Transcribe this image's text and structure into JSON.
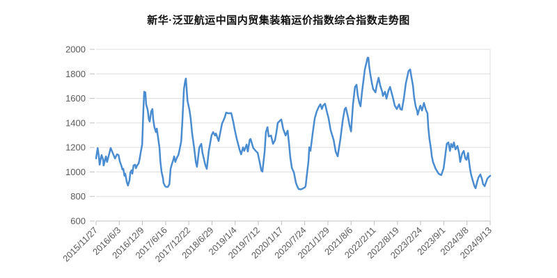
{
  "chart": {
    "title": "新华·泛亚航运中国内贸集装箱运价指数综合指数走势图"
  },
  "chart_data": {
    "type": "line",
    "title": "新华·泛亚航运中国内贸集装箱运价指数综合指数走势图",
    "series_name": "综合指数",
    "legend": "none",
    "grid": "horizontal-only",
    "colors": {
      "line": "#4a8cd2",
      "grid": "#dddddd",
      "axis": "#bfbfbf",
      "label": "#595959",
      "title": "#111111"
    },
    "y_axis": {
      "min": 600,
      "max": 2000,
      "step": 200,
      "ticks": [
        2000,
        1800,
        1600,
        1400,
        1200,
        1000,
        800,
        600
      ]
    },
    "x_axis": {
      "tick_labels": [
        "2015/11/27",
        "2016/6/3",
        "2016/12/9",
        "2017/6/16",
        "2017/12/22",
        "2018/6/29",
        "2019/1/4",
        "2019/7/12",
        "2020/1/17",
        "2020/7/24",
        "2021/1/29",
        "2021/8/6",
        "2022/2/11",
        "2022/8/19",
        "2023/2/24",
        "2023/9/1",
        "2024/3/8",
        "2024/9/13"
      ]
    },
    "points": [
      [
        0.0,
        1110
      ],
      [
        0.004,
        1195
      ],
      [
        0.007,
        1127
      ],
      [
        0.009,
        1059
      ],
      [
        0.014,
        1138
      ],
      [
        0.018,
        1099
      ],
      [
        0.019,
        1053
      ],
      [
        0.025,
        1127
      ],
      [
        0.028,
        1082
      ],
      [
        0.034,
        1156
      ],
      [
        0.037,
        1195
      ],
      [
        0.042,
        1156
      ],
      [
        0.048,
        1110
      ],
      [
        0.053,
        1144
      ],
      [
        0.057,
        1138
      ],
      [
        0.06,
        1088
      ],
      [
        0.064,
        1053
      ],
      [
        0.067,
        1020
      ],
      [
        0.069,
        1025
      ],
      [
        0.072,
        969
      ],
      [
        0.074,
        986
      ],
      [
        0.078,
        918
      ],
      [
        0.081,
        889
      ],
      [
        0.085,
        935
      ],
      [
        0.087,
        997
      ],
      [
        0.09,
        1014
      ],
      [
        0.092,
        986
      ],
      [
        0.095,
        1053
      ],
      [
        0.099,
        1059
      ],
      [
        0.101,
        1031
      ],
      [
        0.104,
        1053
      ],
      [
        0.108,
        1070
      ],
      [
        0.11,
        1099
      ],
      [
        0.113,
        1156
      ],
      [
        0.117,
        1224
      ],
      [
        0.12,
        1500
      ],
      [
        0.122,
        1654
      ],
      [
        0.124,
        1620
      ],
      [
        0.125,
        1649
      ],
      [
        0.127,
        1552
      ],
      [
        0.131,
        1507
      ],
      [
        0.134,
        1428
      ],
      [
        0.136,
        1411
      ],
      [
        0.14,
        1495
      ],
      [
        0.143,
        1513
      ],
      [
        0.145,
        1428
      ],
      [
        0.148,
        1365
      ],
      [
        0.152,
        1325
      ],
      [
        0.154,
        1354
      ],
      [
        0.157,
        1286
      ],
      [
        0.161,
        1195
      ],
      [
        0.163,
        1088
      ],
      [
        0.166,
        1003
      ],
      [
        0.17,
        946
      ],
      [
        0.171,
        912
      ],
      [
        0.175,
        884
      ],
      [
        0.178,
        878
      ],
      [
        0.182,
        878
      ],
      [
        0.186,
        900
      ],
      [
        0.189,
        1025
      ],
      [
        0.193,
        1070
      ],
      [
        0.196,
        1099
      ],
      [
        0.198,
        1127
      ],
      [
        0.201,
        1082
      ],
      [
        0.205,
        1116
      ],
      [
        0.209,
        1140
      ],
      [
        0.212,
        1184
      ],
      [
        0.216,
        1250
      ],
      [
        0.219,
        1420
      ],
      [
        0.223,
        1677
      ],
      [
        0.226,
        1740
      ],
      [
        0.228,
        1762
      ],
      [
        0.232,
        1580
      ],
      [
        0.237,
        1507
      ],
      [
        0.24,
        1439
      ],
      [
        0.244,
        1308
      ],
      [
        0.249,
        1195
      ],
      [
        0.253,
        1082
      ],
      [
        0.256,
        1042
      ],
      [
        0.262,
        1201
      ],
      [
        0.267,
        1229
      ],
      [
        0.27,
        1156
      ],
      [
        0.277,
        1059
      ],
      [
        0.281,
        1025
      ],
      [
        0.286,
        1172
      ],
      [
        0.293,
        1297
      ],
      [
        0.297,
        1325
      ],
      [
        0.302,
        1297
      ],
      [
        0.304,
        1314
      ],
      [
        0.311,
        1252
      ],
      [
        0.316,
        1337
      ],
      [
        0.32,
        1399
      ],
      [
        0.322,
        1411
      ],
      [
        0.327,
        1450
      ],
      [
        0.33,
        1484
      ],
      [
        0.336,
        1478
      ],
      [
        0.343,
        1480
      ],
      [
        0.348,
        1411
      ],
      [
        0.352,
        1343
      ],
      [
        0.357,
        1269
      ],
      [
        0.364,
        1184
      ],
      [
        0.368,
        1144
      ],
      [
        0.373,
        1201
      ],
      [
        0.376,
        1172
      ],
      [
        0.382,
        1223
      ],
      [
        0.385,
        1167
      ],
      [
        0.39,
        1263
      ],
      [
        0.392,
        1269
      ],
      [
        0.399,
        1195
      ],
      [
        0.405,
        1172
      ],
      [
        0.41,
        1156
      ],
      [
        0.415,
        1082
      ],
      [
        0.419,
        1014
      ],
      [
        0.422,
        1003
      ],
      [
        0.428,
        1172
      ],
      [
        0.431,
        1325
      ],
      [
        0.435,
        1365
      ],
      [
        0.438,
        1290
      ],
      [
        0.444,
        1297
      ],
      [
        0.449,
        1229
      ],
      [
        0.454,
        1260
      ],
      [
        0.458,
        1330
      ],
      [
        0.461,
        1399
      ],
      [
        0.467,
        1420
      ],
      [
        0.47,
        1428
      ],
      [
        0.475,
        1350
      ],
      [
        0.481,
        1297
      ],
      [
        0.486,
        1337
      ],
      [
        0.489,
        1250
      ],
      [
        0.493,
        1116
      ],
      [
        0.497,
        1031
      ],
      [
        0.502,
        997
      ],
      [
        0.507,
        912
      ],
      [
        0.511,
        880
      ],
      [
        0.514,
        861
      ],
      [
        0.52,
        858
      ],
      [
        0.525,
        866
      ],
      [
        0.53,
        875
      ],
      [
        0.532,
        889
      ],
      [
        0.535,
        980
      ],
      [
        0.539,
        1090
      ],
      [
        0.541,
        1201
      ],
      [
        0.544,
        1172
      ],
      [
        0.55,
        1325
      ],
      [
        0.555,
        1439
      ],
      [
        0.56,
        1495
      ],
      [
        0.565,
        1530
      ],
      [
        0.569,
        1552
      ],
      [
        0.573,
        1513
      ],
      [
        0.576,
        1541
      ],
      [
        0.581,
        1557
      ],
      [
        0.585,
        1500
      ],
      [
        0.59,
        1439
      ],
      [
        0.595,
        1343
      ],
      [
        0.603,
        1258
      ],
      [
        0.608,
        1167
      ],
      [
        0.613,
        1127
      ],
      [
        0.62,
        1269
      ],
      [
        0.626,
        1422
      ],
      [
        0.631,
        1513
      ],
      [
        0.634,
        1524
      ],
      [
        0.64,
        1439
      ],
      [
        0.643,
        1382
      ],
      [
        0.647,
        1330
      ],
      [
        0.652,
        1552
      ],
      [
        0.657,
        1694
      ],
      [
        0.661,
        1711
      ],
      [
        0.664,
        1626
      ],
      [
        0.668,
        1563
      ],
      [
        0.671,
        1535
      ],
      [
        0.675,
        1654
      ],
      [
        0.682,
        1836
      ],
      [
        0.689,
        1932
      ],
      [
        0.691,
        1932
      ],
      [
        0.693,
        1864
      ],
      [
        0.696,
        1796
      ],
      [
        0.7,
        1722
      ],
      [
        0.703,
        1677
      ],
      [
        0.709,
        1649
      ],
      [
        0.712,
        1705
      ],
      [
        0.717,
        1768
      ],
      [
        0.721,
        1705
      ],
      [
        0.726,
        1654
      ],
      [
        0.728,
        1620
      ],
      [
        0.733,
        1654
      ],
      [
        0.737,
        1598
      ],
      [
        0.742,
        1665
      ],
      [
        0.746,
        1694
      ],
      [
        0.753,
        1609
      ],
      [
        0.758,
        1541
      ],
      [
        0.763,
        1513
      ],
      [
        0.769,
        1552
      ],
      [
        0.772,
        1513
      ],
      [
        0.776,
        1507
      ],
      [
        0.781,
        1598
      ],
      [
        0.786,
        1722
      ],
      [
        0.793,
        1824
      ],
      [
        0.797,
        1836
      ],
      [
        0.8,
        1779
      ],
      [
        0.804,
        1705
      ],
      [
        0.807,
        1609
      ],
      [
        0.811,
        1535
      ],
      [
        0.815,
        1495
      ],
      [
        0.816,
        1467
      ],
      [
        0.822,
        1535
      ],
      [
        0.823,
        1541
      ],
      [
        0.827,
        1501
      ],
      [
        0.832,
        1563
      ],
      [
        0.837,
        1507
      ],
      [
        0.841,
        1478
      ],
      [
        0.843,
        1365
      ],
      [
        0.846,
        1269
      ],
      [
        0.85,
        1184
      ],
      [
        0.852,
        1127
      ],
      [
        0.855,
        1082
      ],
      [
        0.861,
        1031
      ],
      [
        0.864,
        1014
      ],
      [
        0.869,
        986
      ],
      [
        0.876,
        974
      ],
      [
        0.882,
        1031
      ],
      [
        0.887,
        1156
      ],
      [
        0.89,
        1229
      ],
      [
        0.894,
        1241
      ],
      [
        0.898,
        1172
      ],
      [
        0.901,
        1229
      ],
      [
        0.905,
        1201
      ],
      [
        0.908,
        1241
      ],
      [
        0.912,
        1184
      ],
      [
        0.917,
        1212
      ],
      [
        0.921,
        1156
      ],
      [
        0.924,
        1082
      ],
      [
        0.929,
        1150
      ],
      [
        0.933,
        1172
      ],
      [
        0.937,
        1110
      ],
      [
        0.94,
        1099
      ],
      [
        0.944,
        1155
      ],
      [
        0.945,
        1120
      ],
      [
        0.949,
        1025
      ],
      [
        0.952,
        974
      ],
      [
        0.956,
        929
      ],
      [
        0.96,
        884
      ],
      [
        0.963,
        867
      ],
      [
        0.967,
        918
      ],
      [
        0.97,
        952
      ],
      [
        0.974,
        974
      ],
      [
        0.975,
        980
      ],
      [
        0.979,
        946
      ],
      [
        0.982,
        901
      ],
      [
        0.986,
        884
      ],
      [
        0.989,
        912
      ],
      [
        0.993,
        946
      ],
      [
        0.996,
        957
      ],
      [
        1.0,
        969
      ]
    ]
  }
}
